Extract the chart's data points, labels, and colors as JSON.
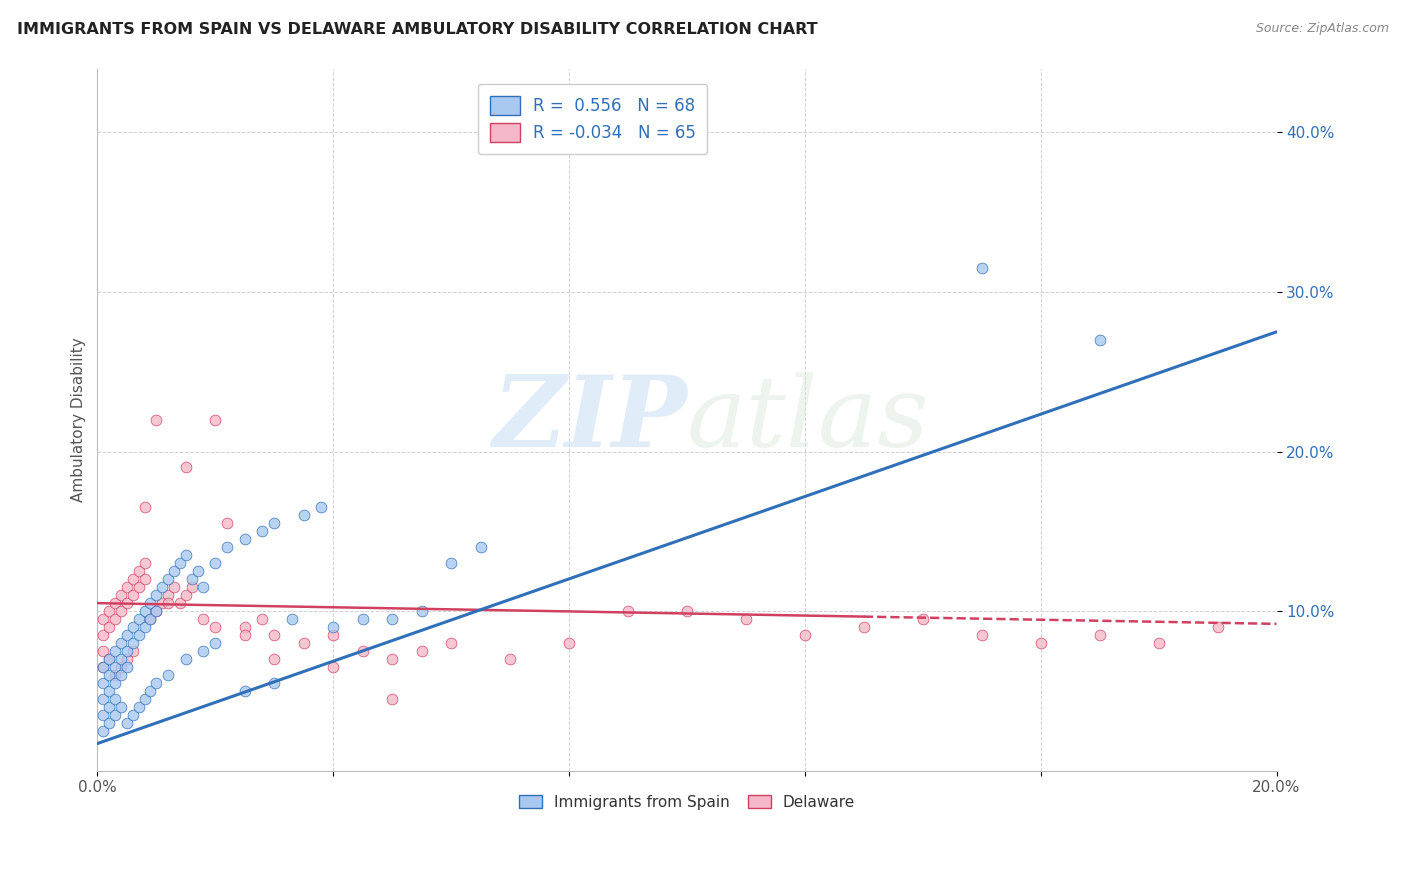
{
  "title": "IMMIGRANTS FROM SPAIN VS DELAWARE AMBULATORY DISABILITY CORRELATION CHART",
  "source": "Source: ZipAtlas.com",
  "xlabel_legend_1": "Immigrants from Spain",
  "xlabel_legend_2": "Delaware",
  "ylabel": "Ambulatory Disability",
  "xlim": [
    0.0,
    0.2
  ],
  "ylim": [
    0.0,
    0.44
  ],
  "xtick_positions": [
    0.0,
    0.2
  ],
  "xtick_labels": [
    "0.0%",
    "20.0%"
  ],
  "ytick_positions": [
    0.1,
    0.2,
    0.3,
    0.4
  ],
  "ytick_labels": [
    "10.0%",
    "20.0%",
    "30.0%",
    "40.0%"
  ],
  "R_blue": 0.556,
  "N_blue": 68,
  "R_pink": -0.034,
  "N_pink": 65,
  "color_blue": "#A8C8F0",
  "color_pink": "#F5B8C8",
  "line_blue": "#3070B8",
  "line_pink": "#D04060",
  "watermark_zip": "ZIP",
  "watermark_atlas": "atlas",
  "background_color": "#FFFFFF",
  "blue_line_x0": 0.0,
  "blue_line_y0": 0.017,
  "blue_line_x1": 0.2,
  "blue_line_y1": 0.275,
  "pink_line_x0": 0.0,
  "pink_line_y0": 0.105,
  "pink_line_x1": 0.2,
  "pink_line_y1": 0.092,
  "blue_scatter_x": [
    0.001,
    0.001,
    0.001,
    0.001,
    0.002,
    0.002,
    0.002,
    0.002,
    0.003,
    0.003,
    0.003,
    0.003,
    0.004,
    0.004,
    0.004,
    0.005,
    0.005,
    0.005,
    0.006,
    0.006,
    0.007,
    0.007,
    0.008,
    0.008,
    0.009,
    0.009,
    0.01,
    0.01,
    0.011,
    0.012,
    0.013,
    0.014,
    0.015,
    0.016,
    0.017,
    0.018,
    0.02,
    0.022,
    0.025,
    0.028,
    0.03,
    0.033,
    0.035,
    0.038,
    0.04,
    0.045,
    0.05,
    0.055,
    0.06,
    0.065,
    0.001,
    0.002,
    0.003,
    0.004,
    0.005,
    0.006,
    0.007,
    0.008,
    0.009,
    0.01,
    0.012,
    0.015,
    0.018,
    0.02,
    0.025,
    0.03,
    0.15,
    0.17
  ],
  "blue_scatter_y": [
    0.065,
    0.055,
    0.045,
    0.035,
    0.07,
    0.06,
    0.05,
    0.04,
    0.075,
    0.065,
    0.055,
    0.045,
    0.08,
    0.07,
    0.06,
    0.085,
    0.075,
    0.065,
    0.09,
    0.08,
    0.095,
    0.085,
    0.1,
    0.09,
    0.105,
    0.095,
    0.11,
    0.1,
    0.115,
    0.12,
    0.125,
    0.13,
    0.135,
    0.12,
    0.125,
    0.115,
    0.13,
    0.14,
    0.145,
    0.15,
    0.155,
    0.095,
    0.16,
    0.165,
    0.09,
    0.095,
    0.095,
    0.1,
    0.13,
    0.14,
    0.025,
    0.03,
    0.035,
    0.04,
    0.03,
    0.035,
    0.04,
    0.045,
    0.05,
    0.055,
    0.06,
    0.07,
    0.075,
    0.08,
    0.05,
    0.055,
    0.315,
    0.27
  ],
  "pink_scatter_x": [
    0.001,
    0.001,
    0.001,
    0.002,
    0.002,
    0.003,
    0.003,
    0.004,
    0.004,
    0.005,
    0.005,
    0.006,
    0.006,
    0.007,
    0.007,
    0.008,
    0.008,
    0.009,
    0.01,
    0.011,
    0.012,
    0.013,
    0.014,
    0.015,
    0.016,
    0.018,
    0.02,
    0.022,
    0.025,
    0.028,
    0.03,
    0.035,
    0.04,
    0.045,
    0.05,
    0.055,
    0.06,
    0.07,
    0.08,
    0.09,
    0.1,
    0.11,
    0.12,
    0.13,
    0.14,
    0.15,
    0.16,
    0.17,
    0.18,
    0.19,
    0.001,
    0.002,
    0.003,
    0.004,
    0.005,
    0.006,
    0.008,
    0.01,
    0.012,
    0.015,
    0.02,
    0.025,
    0.03,
    0.04,
    0.05
  ],
  "pink_scatter_y": [
    0.095,
    0.085,
    0.075,
    0.1,
    0.09,
    0.105,
    0.095,
    0.11,
    0.1,
    0.115,
    0.105,
    0.12,
    0.11,
    0.125,
    0.115,
    0.13,
    0.12,
    0.095,
    0.1,
    0.105,
    0.11,
    0.115,
    0.105,
    0.11,
    0.115,
    0.095,
    0.09,
    0.155,
    0.09,
    0.095,
    0.085,
    0.08,
    0.085,
    0.075,
    0.07,
    0.075,
    0.08,
    0.07,
    0.08,
    0.1,
    0.1,
    0.095,
    0.085,
    0.09,
    0.095,
    0.085,
    0.08,
    0.085,
    0.08,
    0.09,
    0.065,
    0.07,
    0.06,
    0.065,
    0.07,
    0.075,
    0.165,
    0.22,
    0.105,
    0.19,
    0.22,
    0.085,
    0.07,
    0.065,
    0.045
  ]
}
